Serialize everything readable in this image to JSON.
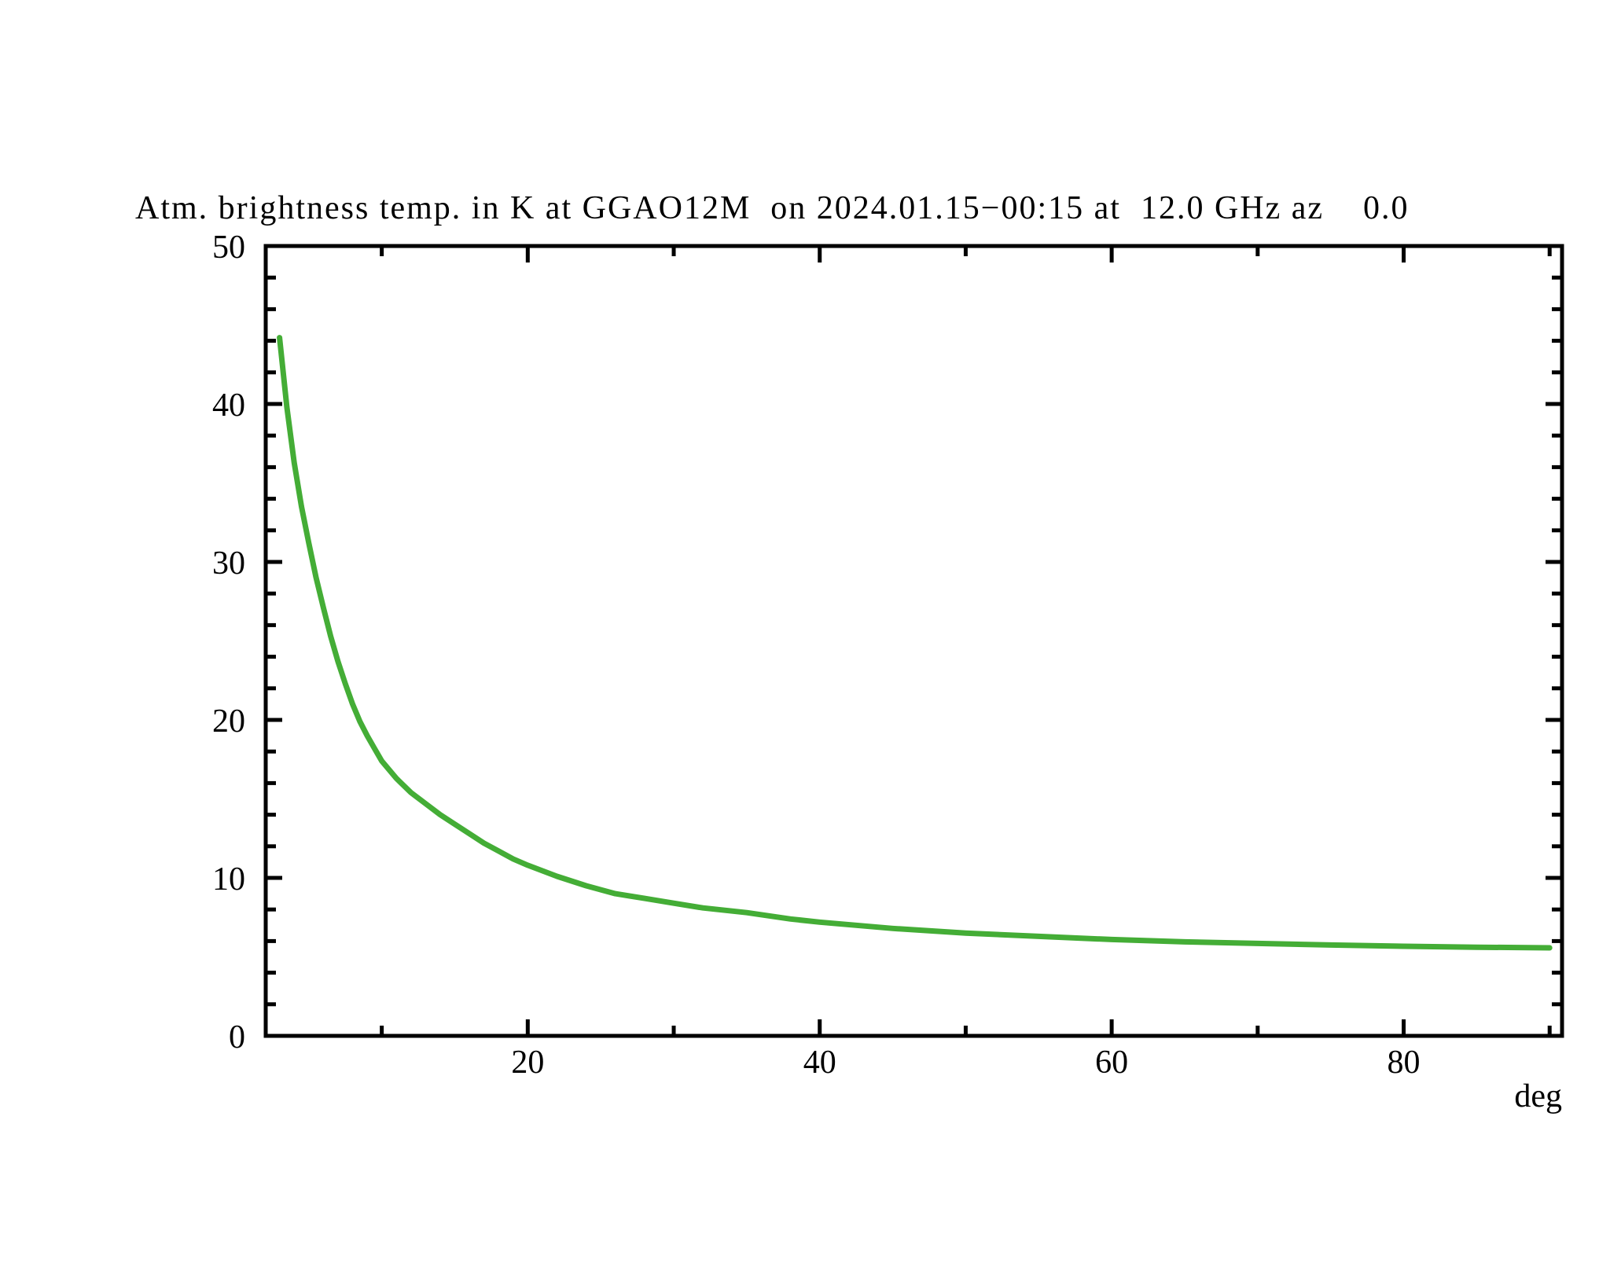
{
  "page": {
    "background": "#ffffff",
    "text_color": "#000000"
  },
  "chart_data": {
    "type": "line",
    "title": "Atm. brightness temp. in K at GGAO12M  on 2024.01.15−00:15 at  12.0 GHz az    0.0",
    "xlabel": "deg",
    "ylabel": "",
    "xlim": [
      2.05,
      90.85
    ],
    "ylim": [
      0,
      50
    ],
    "x_major_ticks": [
      20,
      40,
      60,
      80
    ],
    "x_minor_ticks": [
      10,
      30,
      50,
      70,
      90
    ],
    "y_major_ticks": [
      0,
      10,
      20,
      30,
      40,
      50
    ],
    "y_minor_step": 2,
    "grid": false,
    "legend": null,
    "frame": "full-box-inward-ticks",
    "series": [
      {
        "name": "atmospheric-brightness-temperature",
        "color": "#44ad36",
        "x": [
          3,
          3.5,
          4,
          4.5,
          5,
          5.5,
          6,
          6.5,
          7,
          7.5,
          8,
          8.5,
          9,
          9.5,
          10,
          11,
          12,
          13,
          14,
          15,
          16,
          17,
          18,
          19,
          20,
          22,
          24,
          26,
          28,
          30,
          32,
          35,
          38,
          40,
          45,
          50,
          55,
          60,
          65,
          70,
          75,
          80,
          85,
          90
        ],
        "y": [
          44.2,
          39.8,
          36.3,
          33.5,
          31.2,
          29.0,
          27.1,
          25.3,
          23.7,
          22.3,
          21.0,
          19.9,
          19.0,
          18.2,
          17.4,
          16.3,
          15.4,
          14.7,
          14.0,
          13.4,
          12.8,
          12.2,
          11.7,
          11.2,
          10.8,
          10.1,
          9.5,
          9.0,
          8.7,
          8.4,
          8.1,
          7.8,
          7.4,
          7.2,
          6.8,
          6.5,
          6.3,
          6.1,
          5.95,
          5.85,
          5.75,
          5.67,
          5.61,
          5.57
        ]
      }
    ]
  }
}
